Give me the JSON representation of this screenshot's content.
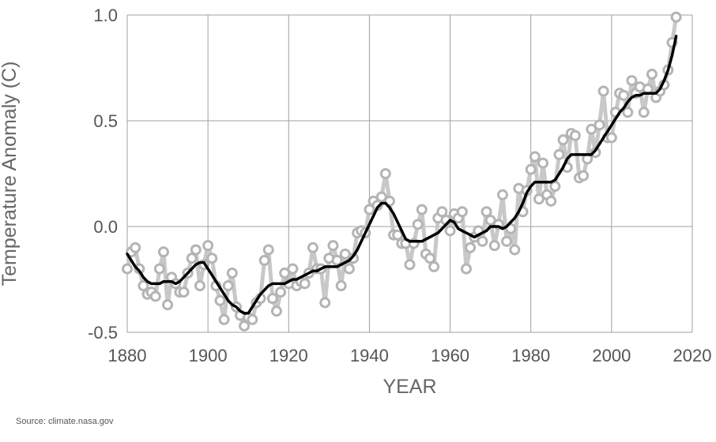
{
  "chart_data": {
    "type": "line",
    "xlabel": "YEAR",
    "ylabel": "Temperature Anomaly (C)",
    "xlim": [
      1880,
      2020
    ],
    "ylim": [
      -0.5,
      1.0
    ],
    "x_ticks": [
      1880,
      1900,
      1920,
      1940,
      1960,
      1980,
      2000,
      2020
    ],
    "y_ticks": [
      -0.5,
      0.0,
      0.5,
      1.0
    ],
    "y_tick_labels": [
      "-0.5",
      "0.0",
      "0.5",
      "1.0"
    ],
    "grid": true,
    "legend": "none",
    "colors": {
      "annual": "#c8c8c8",
      "annual_marker_edge": "#b4b4b4",
      "smoothed": "#000000",
      "grid": "#a0a0a0",
      "tick_text": "#555555"
    },
    "series": [
      {
        "role": "annual",
        "x": [
          1880,
          1881,
          1882,
          1883,
          1884,
          1885,
          1886,
          1887,
          1888,
          1889,
          1890,
          1891,
          1892,
          1893,
          1894,
          1895,
          1896,
          1897,
          1898,
          1899,
          1900,
          1901,
          1902,
          1903,
          1904,
          1905,
          1906,
          1907,
          1908,
          1909,
          1910,
          1911,
          1912,
          1913,
          1914,
          1915,
          1916,
          1917,
          1918,
          1919,
          1920,
          1921,
          1922,
          1923,
          1924,
          1925,
          1926,
          1927,
          1928,
          1929,
          1930,
          1931,
          1932,
          1933,
          1934,
          1935,
          1936,
          1937,
          1938,
          1939,
          1940,
          1941,
          1942,
          1943,
          1944,
          1945,
          1946,
          1947,
          1948,
          1949,
          1950,
          1951,
          1952,
          1953,
          1954,
          1955,
          1956,
          1957,
          1958,
          1959,
          1960,
          1961,
          1962,
          1963,
          1964,
          1965,
          1966,
          1967,
          1968,
          1969,
          1970,
          1971,
          1972,
          1973,
          1974,
          1975,
          1976,
          1977,
          1978,
          1979,
          1980,
          1981,
          1982,
          1983,
          1984,
          1985,
          1986,
          1987,
          1988,
          1989,
          1990,
          1991,
          1992,
          1993,
          1994,
          1995,
          1996,
          1997,
          1998,
          1999,
          2000,
          2001,
          2002,
          2003,
          2004,
          2005,
          2006,
          2007,
          2008,
          2009,
          2010,
          2011,
          2012,
          2013,
          2014,
          2015,
          2016
        ],
        "values": [
          -0.2,
          -0.12,
          -0.1,
          -0.2,
          -0.28,
          -0.32,
          -0.31,
          -0.33,
          -0.2,
          -0.12,
          -0.37,
          -0.24,
          -0.27,
          -0.31,
          -0.31,
          -0.22,
          -0.15,
          -0.11,
          -0.28,
          -0.18,
          -0.09,
          -0.15,
          -0.28,
          -0.35,
          -0.44,
          -0.28,
          -0.22,
          -0.38,
          -0.42,
          -0.47,
          -0.43,
          -0.44,
          -0.36,
          -0.34,
          -0.16,
          -0.11,
          -0.34,
          -0.4,
          -0.31,
          -0.22,
          -0.27,
          -0.2,
          -0.28,
          -0.26,
          -0.27,
          -0.22,
          -0.1,
          -0.2,
          -0.2,
          -0.36,
          -0.15,
          -0.09,
          -0.16,
          -0.28,
          -0.13,
          -0.2,
          -0.15,
          -0.03,
          -0.02,
          -0.03,
          0.08,
          0.12,
          0.1,
          0.14,
          0.25,
          0.12,
          -0.04,
          -0.04,
          -0.08,
          -0.08,
          -0.18,
          -0.08,
          0.01,
          0.08,
          -0.13,
          -0.15,
          -0.19,
          0.04,
          0.07,
          0.03,
          -0.02,
          0.06,
          0.04,
          0.07,
          -0.2,
          -0.1,
          -0.05,
          -0.02,
          -0.07,
          0.07,
          0.03,
          -0.09,
          0.01,
          0.15,
          -0.07,
          -0.01,
          -0.11,
          0.18,
          0.07,
          0.17,
          0.27,
          0.33,
          0.13,
          0.3,
          0.15,
          0.12,
          0.19,
          0.34,
          0.41,
          0.28,
          0.44,
          0.43,
          0.23,
          0.24,
          0.32,
          0.46,
          0.35,
          0.48,
          0.64,
          0.42,
          0.42,
          0.54,
          0.63,
          0.62,
          0.54,
          0.69,
          0.63,
          0.66,
          0.54,
          0.65,
          0.72,
          0.61,
          0.64,
          0.67,
          0.74,
          0.87,
          0.99
        ]
      },
      {
        "role": "smoothed",
        "x": [
          1880,
          1881,
          1882,
          1883,
          1884,
          1885,
          1886,
          1887,
          1888,
          1889,
          1890,
          1891,
          1892,
          1893,
          1894,
          1895,
          1896,
          1897,
          1898,
          1899,
          1900,
          1901,
          1902,
          1903,
          1904,
          1905,
          1906,
          1907,
          1908,
          1909,
          1910,
          1911,
          1912,
          1913,
          1914,
          1915,
          1916,
          1917,
          1918,
          1919,
          1920,
          1921,
          1922,
          1923,
          1924,
          1925,
          1926,
          1927,
          1928,
          1929,
          1930,
          1931,
          1932,
          1933,
          1934,
          1935,
          1936,
          1937,
          1938,
          1939,
          1940,
          1941,
          1942,
          1943,
          1944,
          1945,
          1946,
          1947,
          1948,
          1949,
          1950,
          1951,
          1952,
          1953,
          1954,
          1955,
          1956,
          1957,
          1958,
          1959,
          1960,
          1961,
          1962,
          1963,
          1964,
          1965,
          1966,
          1967,
          1968,
          1969,
          1970,
          1971,
          1972,
          1973,
          1974,
          1975,
          1976,
          1977,
          1978,
          1979,
          1980,
          1981,
          1982,
          1983,
          1984,
          1985,
          1986,
          1987,
          1988,
          1989,
          1990,
          1991,
          1992,
          1993,
          1994,
          1995,
          1996,
          1997,
          1998,
          1999,
          2000,
          2001,
          2002,
          2003,
          2004,
          2005,
          2006,
          2007,
          2008,
          2009,
          2010,
          2011,
          2012,
          2013,
          2014,
          2015,
          2016
        ],
        "values": [
          -0.13,
          -0.16,
          -0.19,
          -0.21,
          -0.24,
          -0.26,
          -0.27,
          -0.27,
          -0.27,
          -0.26,
          -0.26,
          -0.26,
          -0.27,
          -0.26,
          -0.24,
          -0.22,
          -0.2,
          -0.18,
          -0.17,
          -0.17,
          -0.2,
          -0.23,
          -0.26,
          -0.29,
          -0.32,
          -0.35,
          -0.37,
          -0.38,
          -0.4,
          -0.41,
          -0.41,
          -0.38,
          -0.35,
          -0.32,
          -0.3,
          -0.28,
          -0.27,
          -0.27,
          -0.27,
          -0.27,
          -0.26,
          -0.25,
          -0.25,
          -0.24,
          -0.23,
          -0.22,
          -0.21,
          -0.21,
          -0.2,
          -0.19,
          -0.19,
          -0.19,
          -0.19,
          -0.18,
          -0.17,
          -0.16,
          -0.14,
          -0.11,
          -0.07,
          -0.03,
          0.01,
          0.05,
          0.09,
          0.11,
          0.11,
          0.09,
          0.06,
          0.02,
          -0.02,
          -0.06,
          -0.07,
          -0.07,
          -0.07,
          -0.07,
          -0.06,
          -0.05,
          -0.04,
          -0.03,
          -0.01,
          0.01,
          0.03,
          0.02,
          -0.01,
          -0.02,
          -0.03,
          -0.04,
          -0.05,
          -0.04,
          -0.03,
          -0.02,
          0.0,
          0.0,
          0.0,
          -0.01,
          0.0,
          0.02,
          0.04,
          0.07,
          0.11,
          0.16,
          0.19,
          0.21,
          0.21,
          0.21,
          0.21,
          0.21,
          0.22,
          0.25,
          0.28,
          0.32,
          0.34,
          0.34,
          0.34,
          0.34,
          0.34,
          0.34,
          0.36,
          0.39,
          0.42,
          0.45,
          0.48,
          0.51,
          0.54,
          0.56,
          0.59,
          0.61,
          0.62,
          0.62,
          0.63,
          0.63,
          0.63,
          0.63,
          0.65,
          0.69,
          0.74,
          0.81,
          0.9
        ]
      }
    ]
  },
  "footer": {
    "source": "Source: climate.nasa.gov"
  }
}
